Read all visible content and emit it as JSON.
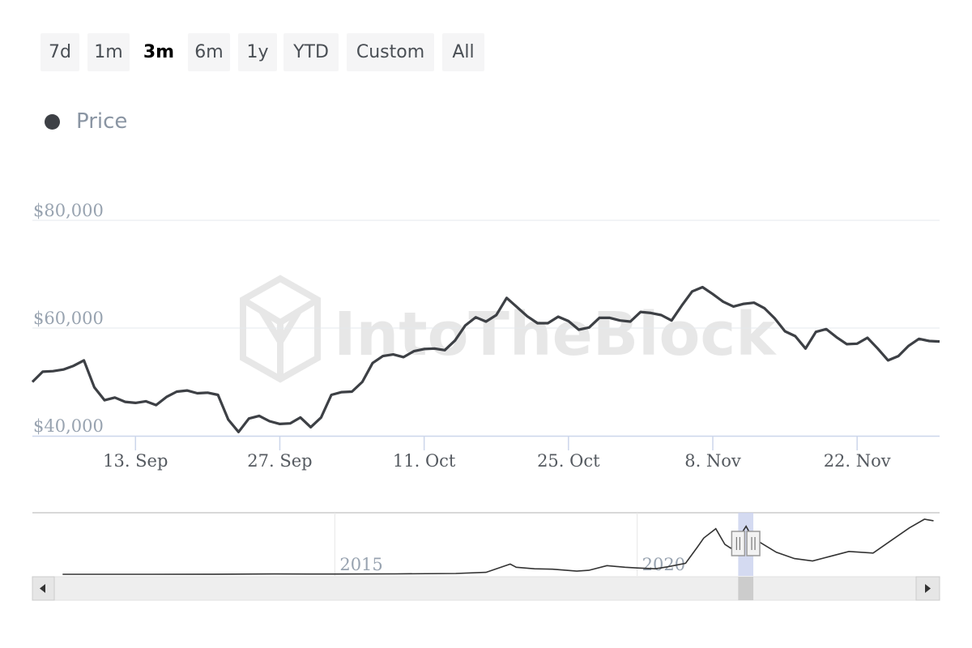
{
  "range_selector": {
    "buttons": [
      {
        "label": "7d",
        "active": false
      },
      {
        "label": "1m",
        "active": false
      },
      {
        "label": "3m",
        "active": true
      },
      {
        "label": "6m",
        "active": false
      },
      {
        "label": "1y",
        "active": false
      },
      {
        "label": "YTD",
        "active": false
      },
      {
        "label": "Custom",
        "active": false
      },
      {
        "label": "All",
        "active": false
      }
    ]
  },
  "legend": {
    "label": "Price",
    "color": "#3d4045"
  },
  "watermark": "IntoTheBlock",
  "colors": {
    "line": "#3d4045",
    "grid": "#e6e9ee",
    "axis": "#ccd6eb",
    "navigator_mask": "#ccd4ee",
    "scrollbar": "#eeeeee"
  },
  "chart_data": {
    "type": "line",
    "series": [
      {
        "name": "Price",
        "x": [
          "2021-09-03",
          "2021-09-04",
          "2021-09-05",
          "2021-09-06",
          "2021-09-07",
          "2021-09-08",
          "2021-09-09",
          "2021-09-10",
          "2021-09-11",
          "2021-09-12",
          "2021-09-13",
          "2021-09-14",
          "2021-09-15",
          "2021-09-16",
          "2021-09-17",
          "2021-09-18",
          "2021-09-19",
          "2021-09-20",
          "2021-09-21",
          "2021-09-22",
          "2021-09-23",
          "2021-09-24",
          "2021-09-25",
          "2021-09-26",
          "2021-09-27",
          "2021-09-28",
          "2021-09-29",
          "2021-09-30",
          "2021-10-01",
          "2021-10-02",
          "2021-10-03",
          "2021-10-04",
          "2021-10-05",
          "2021-10-06",
          "2021-10-07",
          "2021-10-08",
          "2021-10-09",
          "2021-10-10",
          "2021-10-11",
          "2021-10-12",
          "2021-10-13",
          "2021-10-14",
          "2021-10-15",
          "2021-10-16",
          "2021-10-17",
          "2021-10-18",
          "2021-10-19",
          "2021-10-20",
          "2021-10-21",
          "2021-10-22",
          "2021-10-23",
          "2021-10-24",
          "2021-10-25",
          "2021-10-26",
          "2021-10-27",
          "2021-10-28",
          "2021-10-29",
          "2021-10-30",
          "2021-10-31",
          "2021-11-01",
          "2021-11-02",
          "2021-11-03",
          "2021-11-04",
          "2021-11-05",
          "2021-11-06",
          "2021-11-07",
          "2021-11-08",
          "2021-11-09",
          "2021-11-10",
          "2021-11-11",
          "2021-11-12",
          "2021-11-13",
          "2021-11-14",
          "2021-11-15",
          "2021-11-16",
          "2021-11-17",
          "2021-11-18",
          "2021-11-19",
          "2021-11-20",
          "2021-11-21",
          "2021-11-22",
          "2021-11-23",
          "2021-11-24",
          "2021-11-25",
          "2021-11-26",
          "2021-11-27",
          "2021-11-28",
          "2021-11-29",
          "2021-11-30"
        ],
        "values": [
          50000,
          51900,
          52000,
          52300,
          53000,
          54000,
          49000,
          46600,
          47100,
          46300,
          46100,
          46400,
          45700,
          47200,
          48200,
          48400,
          47900,
          48000,
          47600,
          43000,
          40700,
          43200,
          43700,
          42700,
          42200,
          42300,
          43400,
          41600,
          43400,
          47600,
          48100,
          48200,
          50000,
          53500,
          54800,
          55100,
          54600,
          55700,
          56100,
          56200,
          55900,
          57700,
          60500,
          62000,
          61200,
          62400,
          65600,
          63900,
          62200,
          60900,
          60900,
          62100,
          61300,
          59700,
          60100,
          61900,
          61900,
          61400,
          61200,
          63000,
          62800,
          62400,
          61400,
          64200,
          66800,
          67600,
          66300,
          64900,
          64000,
          64500,
          64700,
          63700,
          61800,
          59400,
          58500,
          56200,
          59300,
          59800,
          58300,
          57000,
          57100,
          58200,
          56200,
          54000,
          54800,
          56700,
          58000,
          57600,
          57500
        ]
      }
    ],
    "x_ticks": [
      "13. Sep",
      "27. Sep",
      "11. Oct",
      "25. Oct",
      "8. Nov",
      "22. Nov"
    ],
    "y_ticks": [
      "$40,000",
      "$60,000",
      "$80,000"
    ],
    "ylim": [
      40000,
      80000
    ],
    "y_grid": true,
    "legend_position": "top-left",
    "navigator": {
      "labels": [
        "2015",
        "2020"
      ],
      "years": [
        2010.5,
        2011,
        2012,
        2013,
        2014,
        2015,
        2016,
        2017,
        2017.5,
        2017.9,
        2018.0,
        2018.3,
        2018.6,
        2019.0,
        2019.2,
        2019.5,
        2019.8,
        2020.0,
        2020.3,
        2020.5,
        2020.8,
        2021.0,
        2021.1,
        2021.3,
        2021.45,
        2021.55,
        2021.65,
        2021.8,
        2021.9,
        2022.0,
        2022.3,
        2022.6,
        2022.9,
        2023.2,
        2023.5,
        2023.9,
        2024.2,
        2024.5,
        2024.75,
        2024.9
      ],
      "values": [
        0,
        0,
        0,
        100,
        400,
        300,
        500,
        1000,
        2500,
        13000,
        9000,
        7000,
        6500,
        4000,
        5000,
        11000,
        9000,
        8000,
        7000,
        9500,
        14000,
        35000,
        46000,
        58000,
        38000,
        33000,
        43000,
        61000,
        47000,
        42000,
        28000,
        20000,
        17000,
        23000,
        29000,
        27000,
        43000,
        59000,
        70000,
        68000
      ]
    }
  }
}
